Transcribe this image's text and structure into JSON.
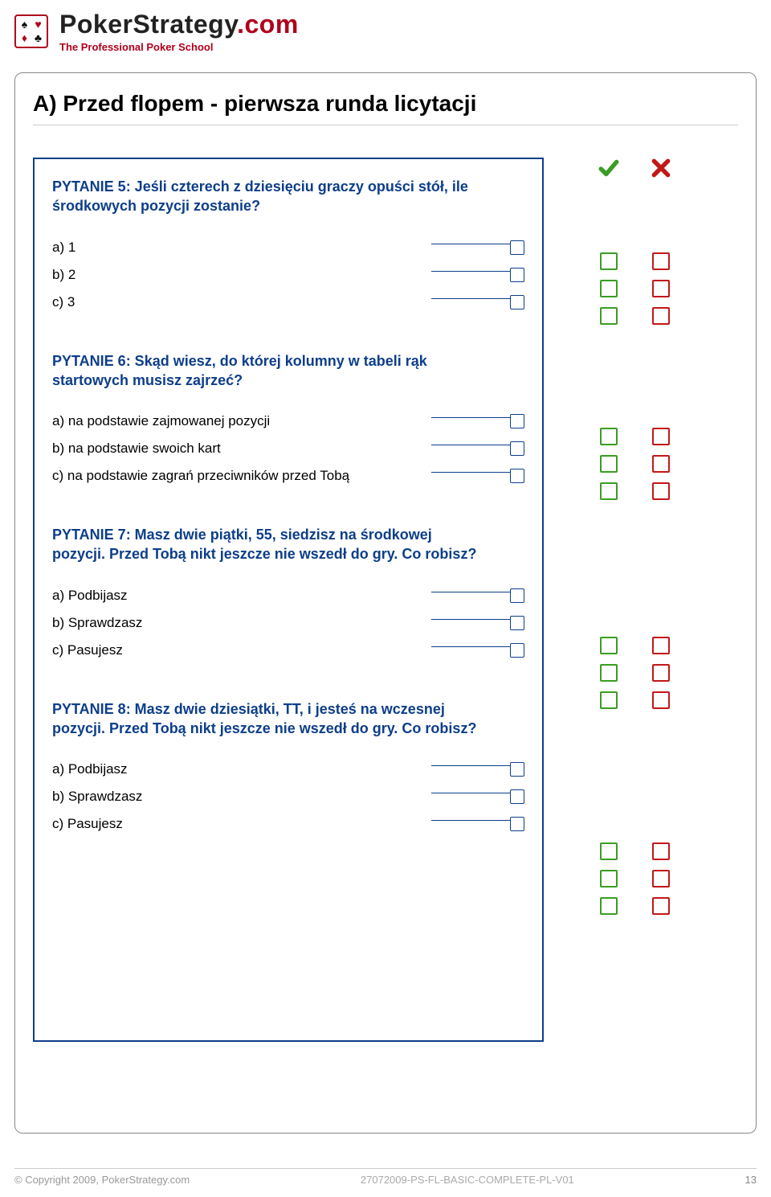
{
  "brand": {
    "title_main": "PokerStrategy",
    "title_suffix": ".com",
    "subtitle": "The Professional Poker School"
  },
  "section": {
    "title": "A) Przed flopem - pierwsza runda licytacji"
  },
  "questions": [
    {
      "title": "PYTANIE 5: Jeśli czterech z dziesięciu graczy opuści stół, ile środkowych pozycji zostanie?",
      "answers": [
        "a) 1",
        "b) 2",
        "c) 3"
      ]
    },
    {
      "title": "PYTANIE 6: Skąd wiesz, do której kolumny w tabeli rąk startowych musisz zajrzeć?",
      "answers": [
        "a) na podstawie zajmowanej pozycji",
        "b) na podstawie swoich kart",
        "c) na podstawie zagrań przeciwników przed Tobą"
      ]
    },
    {
      "title": "PYTANIE 7: Masz dwie piątki, 55, siedzisz na środkowej pozycji. Przed Tobą nikt jeszcze nie wszedł do gry. Co robisz?",
      "answers": [
        "a) Podbijasz",
        "b) Sprawdzasz",
        "c) Pasujesz"
      ]
    },
    {
      "title": "PYTANIE 8: Masz dwie dziesiątki, TT, i jesteś na wczesnej pozycji. Przed Tobą nikt jeszcze nie wszedł do gry. Co robisz?",
      "answers": [
        "a) Podbijasz",
        "b) Sprawdzasz",
        "c) Pasujesz"
      ]
    }
  ],
  "mark_offsets": [
    112,
    330,
    590,
    846
  ],
  "colors": {
    "brand_red": "#b0001c",
    "frame_blue": "#0d3e8a",
    "check_green": "#3a9d23",
    "cross_red": "#c21818"
  },
  "footer": {
    "copyright": "© Copyright 2009, PokerStrategy.com",
    "docid": "27072009-PS-FL-BASIC-COMPLETE-PL-V01",
    "page": "13"
  }
}
